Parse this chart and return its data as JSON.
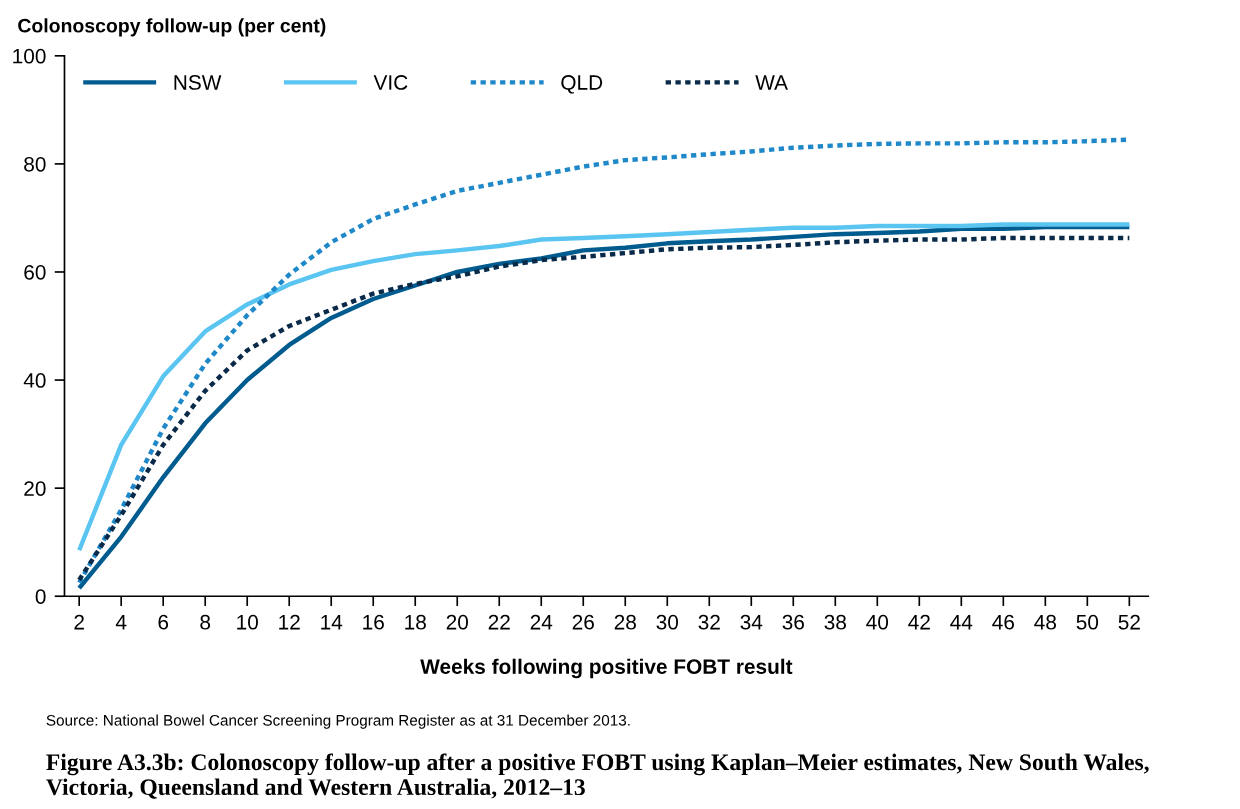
{
  "chart_data": {
    "type": "line",
    "title": "Figure A3.3b: Colonoscopy follow-up after a positive FOBT using Kaplan–Meier estimates, New South Wales, Victoria, Queensland and Western Australia, 2012–13",
    "xlabel": "Weeks following positive FOBT result",
    "ylabel": "Colonoscopy follow-up (per cent)",
    "categories": [
      "2",
      "4",
      "6",
      "8",
      "10",
      "12",
      "14",
      "16",
      "18",
      "20",
      "22",
      "24",
      "26",
      "28",
      "30",
      "32",
      "34",
      "36",
      "38",
      "40",
      "42",
      "44",
      "46",
      "48",
      "50",
      "52"
    ],
    "series": [
      {
        "name": "NSW",
        "color": "#005b8f",
        "line_style": "solid",
        "values": [
          1.5,
          11,
          22,
          32,
          40,
          46.5,
          51.5,
          55,
          57.5,
          60,
          61.5,
          62.5,
          64,
          64.5,
          65.3,
          65.7,
          66,
          66.5,
          67,
          67.2,
          67.5,
          68,
          68,
          68.3,
          68.3,
          68.3
        ]
      },
      {
        "name": "VIC",
        "color": "#5bc5f2",
        "line_style": "solid",
        "values": [
          8.5,
          28,
          40.7,
          49,
          54,
          57.7,
          60.4,
          62,
          63.3,
          64,
          64.8,
          66,
          66.3,
          66.6,
          67,
          67.4,
          67.8,
          68.2,
          68.2,
          68.5,
          68.5,
          68.5,
          68.8,
          68.8,
          68.8,
          68.8
        ]
      },
      {
        "name": "QLD",
        "color": "#1f88c9",
        "line_style": "dotted",
        "values": [
          2.5,
          16,
          31,
          43,
          52,
          59.5,
          65.5,
          69.8,
          72.5,
          75,
          76.5,
          78,
          79.5,
          80.7,
          81.2,
          81.8,
          82.3,
          83,
          83.4,
          83.7,
          83.8,
          83.8,
          84,
          84,
          84.2,
          84.5
        ]
      },
      {
        "name": "WA",
        "color": "#0a2a4a",
        "line_style": "dotted",
        "values": [
          3,
          15,
          28,
          38,
          45.5,
          50,
          53,
          56,
          57.8,
          59.2,
          61,
          62.2,
          62.8,
          63.5,
          64.2,
          64.5,
          64.6,
          65,
          65.5,
          65.8,
          66,
          66,
          66.3,
          66.3,
          66.3,
          66.3
        ]
      }
    ],
    "ylim": [
      0,
      100
    ],
    "yticks": [
      0,
      20,
      40,
      60,
      80,
      100
    ],
    "grid": false,
    "legend": "top left",
    "marker": "none",
    "annotations": [
      "Source: National Bowel Cancer Screening Program Register as at 31 December 2013."
    ]
  }
}
